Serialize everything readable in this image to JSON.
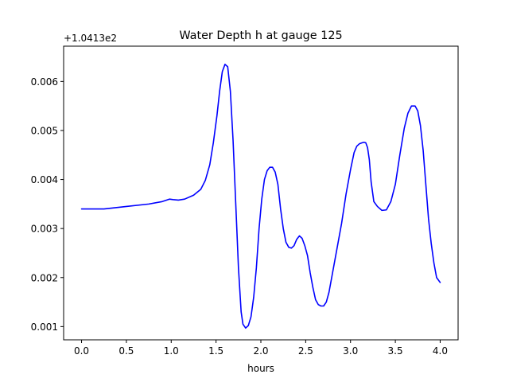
{
  "chart_data": {
    "type": "line",
    "title": "Water Depth h at gauge 125",
    "xlabel": "hours",
    "ylabel": "",
    "offset_label": "+1.0413e2",
    "xlim": [
      -0.2,
      4.2
    ],
    "ylim": [
      0.00073,
      0.00672
    ],
    "xticks": [
      0.0,
      0.5,
      1.0,
      1.5,
      2.0,
      2.5,
      3.0,
      3.5,
      4.0
    ],
    "xtick_labels": [
      "0.0",
      "0.5",
      "1.0",
      "1.5",
      "2.0",
      "2.5",
      "3.0",
      "3.5",
      "4.0"
    ],
    "yticks": [
      0.001,
      0.002,
      0.003,
      0.004,
      0.005,
      0.006
    ],
    "ytick_labels": [
      "0.001",
      "0.002",
      "0.003",
      "0.004",
      "0.005",
      "0.006"
    ],
    "grid": false,
    "legend": "none",
    "series": [
      {
        "color": "#0000ff",
        "x": [
          0.0,
          0.1,
          0.25,
          0.5,
          0.75,
          0.9,
          0.98,
          1.02,
          1.08,
          1.15,
          1.25,
          1.33,
          1.38,
          1.43,
          1.47,
          1.51,
          1.54,
          1.57,
          1.6,
          1.63,
          1.66,
          1.69,
          1.72,
          1.75,
          1.78,
          1.8,
          1.83,
          1.86,
          1.89,
          1.92,
          1.95,
          1.98,
          2.01,
          2.04,
          2.07,
          2.1,
          2.13,
          2.16,
          2.19,
          2.22,
          2.25,
          2.28,
          2.31,
          2.34,
          2.37,
          2.4,
          2.43,
          2.46,
          2.49,
          2.52,
          2.55,
          2.58,
          2.61,
          2.64,
          2.67,
          2.7,
          2.73,
          2.76,
          2.8,
          2.85,
          2.9,
          2.95,
          3.0,
          3.04,
          3.07,
          3.1,
          3.13,
          3.15,
          3.17,
          3.19,
          3.21,
          3.23,
          3.26,
          3.3,
          3.35,
          3.4,
          3.45,
          3.5,
          3.55,
          3.6,
          3.64,
          3.68,
          3.72,
          3.75,
          3.78,
          3.81,
          3.84,
          3.87,
          3.9,
          3.93,
          3.96,
          4.0
        ],
        "y": [
          0.0034,
          0.0034,
          0.0034,
          0.00345,
          0.0035,
          0.00355,
          0.0036,
          0.00359,
          0.00358,
          0.0036,
          0.00368,
          0.0038,
          0.00398,
          0.0043,
          0.00475,
          0.0053,
          0.0058,
          0.0062,
          0.00635,
          0.0063,
          0.0058,
          0.0048,
          0.0035,
          0.0022,
          0.0013,
          0.00105,
          0.00097,
          0.00102,
          0.0012,
          0.0016,
          0.0022,
          0.003,
          0.0036,
          0.004,
          0.00418,
          0.00425,
          0.00425,
          0.00415,
          0.0039,
          0.0034,
          0.003,
          0.00272,
          0.00262,
          0.0026,
          0.00265,
          0.00278,
          0.00285,
          0.0028,
          0.00265,
          0.00245,
          0.0021,
          0.0018,
          0.00155,
          0.00145,
          0.00142,
          0.00142,
          0.0015,
          0.0017,
          0.0021,
          0.0026,
          0.0031,
          0.0037,
          0.0042,
          0.00455,
          0.00468,
          0.00473,
          0.00475,
          0.00476,
          0.00475,
          0.00465,
          0.0044,
          0.00395,
          0.00355,
          0.00345,
          0.00337,
          0.00338,
          0.00355,
          0.0039,
          0.0045,
          0.00505,
          0.00535,
          0.0055,
          0.0055,
          0.0054,
          0.0051,
          0.0046,
          0.0039,
          0.0032,
          0.0027,
          0.0023,
          0.002,
          0.0019
        ]
      }
    ]
  }
}
